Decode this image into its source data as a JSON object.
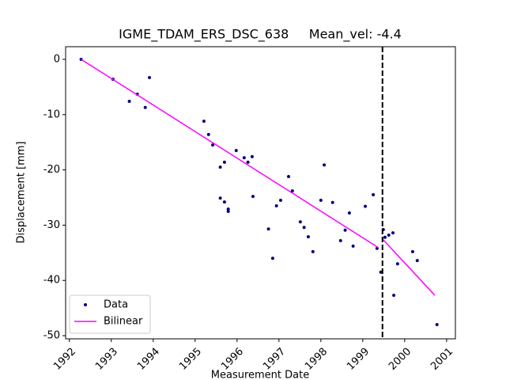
{
  "chart_data": {
    "type": "scatter",
    "title": "IGME_TDAM_ERS_DSC_638     Mean_vel: -4.4",
    "x_label": "Measurement Date",
    "y_label": "Displacement [mm]",
    "xlim": [
      1991.91,
      2001.21
    ],
    "ylim": [
      -50.57,
      2.29
    ],
    "xticks": [
      1992,
      1993,
      1994,
      1995,
      1996,
      1997,
      1998,
      1999,
      2000,
      2001
    ],
    "yticks": [
      0,
      -10,
      -20,
      -30,
      -40,
      -50
    ],
    "vline": 1999.47,
    "legend": "lower left",
    "series": [
      {
        "name": "Data",
        "color": "#00007f",
        "type": "scatter",
        "x": [
          1992.28,
          1993.04,
          1993.43,
          1993.62,
          1993.81,
          1993.91,
          1995.21,
          1995.32,
          1995.42,
          1995.6,
          1995.7,
          1995.6,
          1995.7,
          1995.79,
          1995.79,
          1995.98,
          1996.17,
          1996.26,
          1996.36,
          1996.38,
          1996.75,
          1996.85,
          1996.94,
          1997.04,
          1997.23,
          1997.32,
          1997.51,
          1997.6,
          1997.7,
          1997.81,
          1998.0,
          1998.08,
          1998.28,
          1998.47,
          1998.58,
          1998.68,
          1998.77,
          1999.06,
          1999.25,
          1999.34,
          1999.43,
          1999.49,
          1999.53,
          1999.62,
          1999.72,
          1999.83,
          1999.74,
          2000.19,
          2000.3,
          2000.77
        ],
        "values": [
          0,
          -3.6,
          -7.6,
          -6.3,
          -8.7,
          -3.3,
          -11.2,
          -13.6,
          -15.5,
          -19.5,
          -18.6,
          -25.1,
          -25.8,
          -27.1,
          -27.5,
          -16.5,
          -17.8,
          -18.6,
          -17.6,
          -24.8,
          -30.7,
          -36.0,
          -26.5,
          -25.5,
          -21.2,
          -23.8,
          -29.4,
          -30.4,
          -32.1,
          -34.8,
          -25.5,
          -19.1,
          -25.9,
          -32.8,
          -30.9,
          -27.8,
          -33.8,
          -26.6,
          -24.5,
          -34.2,
          -38.5,
          -30.8,
          -32.2,
          -31.8,
          -31.4,
          -37.0,
          -42.7,
          -34.8,
          -36.4,
          -48.0
        ]
      },
      {
        "name": "Bilinear",
        "color": "#ff00ff",
        "type": "line",
        "x": [
          1992.28,
          1999.36,
          1999.42,
          1999.47,
          2000.72
        ],
        "values": [
          0,
          -34.0,
          null,
          -32.5,
          -42.7
        ]
      }
    ]
  }
}
